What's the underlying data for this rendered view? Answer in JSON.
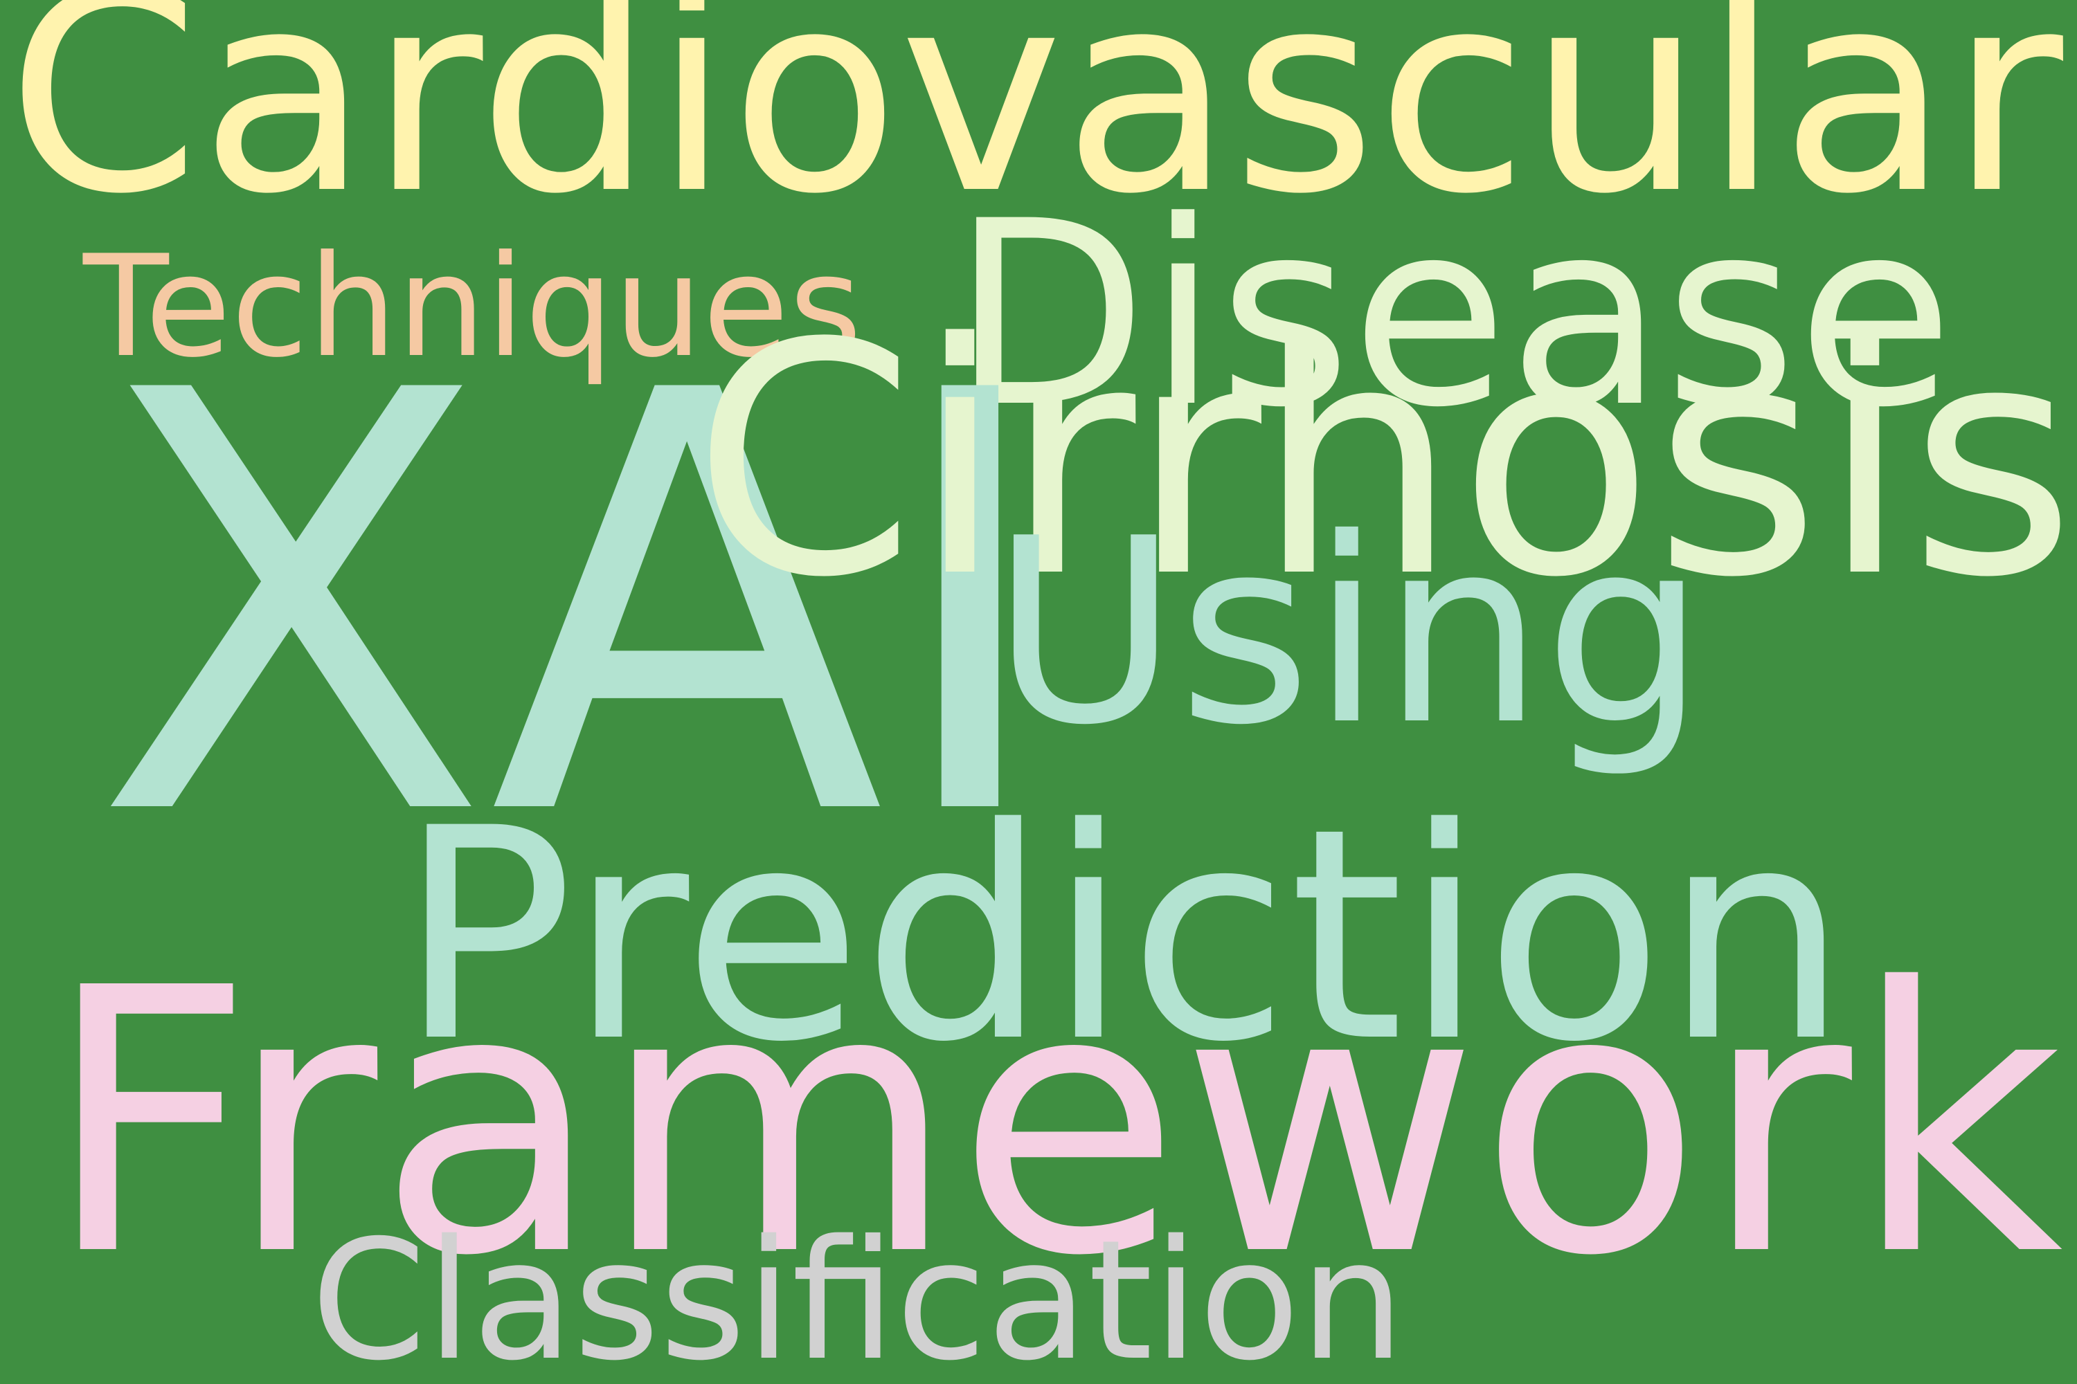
{
  "background_color": "#3f8f41",
  "words": [
    {
      "key": "cardiovascular",
      "text": "Cardiovascular",
      "color": "#fff3ae"
    },
    {
      "key": "disease",
      "text": "Disease",
      "color": "#e6f5cf"
    },
    {
      "key": "techniques",
      "text": "Techniques",
      "color": "#f5c9a3"
    },
    {
      "key": "xai",
      "text": "XAI",
      "color": "#b3e3d1"
    },
    {
      "key": "cirrhosis",
      "text": "Cirrhosis",
      "color": "#e6f5cf"
    },
    {
      "key": "using",
      "text": "Using",
      "color": "#b3e3d1"
    },
    {
      "key": "prediction",
      "text": "Prediction",
      "color": "#b3e3d1"
    },
    {
      "key": "framework",
      "text": "Framework",
      "color": "#f5d0e3"
    },
    {
      "key": "classification",
      "text": "Classification",
      "color": "#d1d1d1"
    }
  ]
}
